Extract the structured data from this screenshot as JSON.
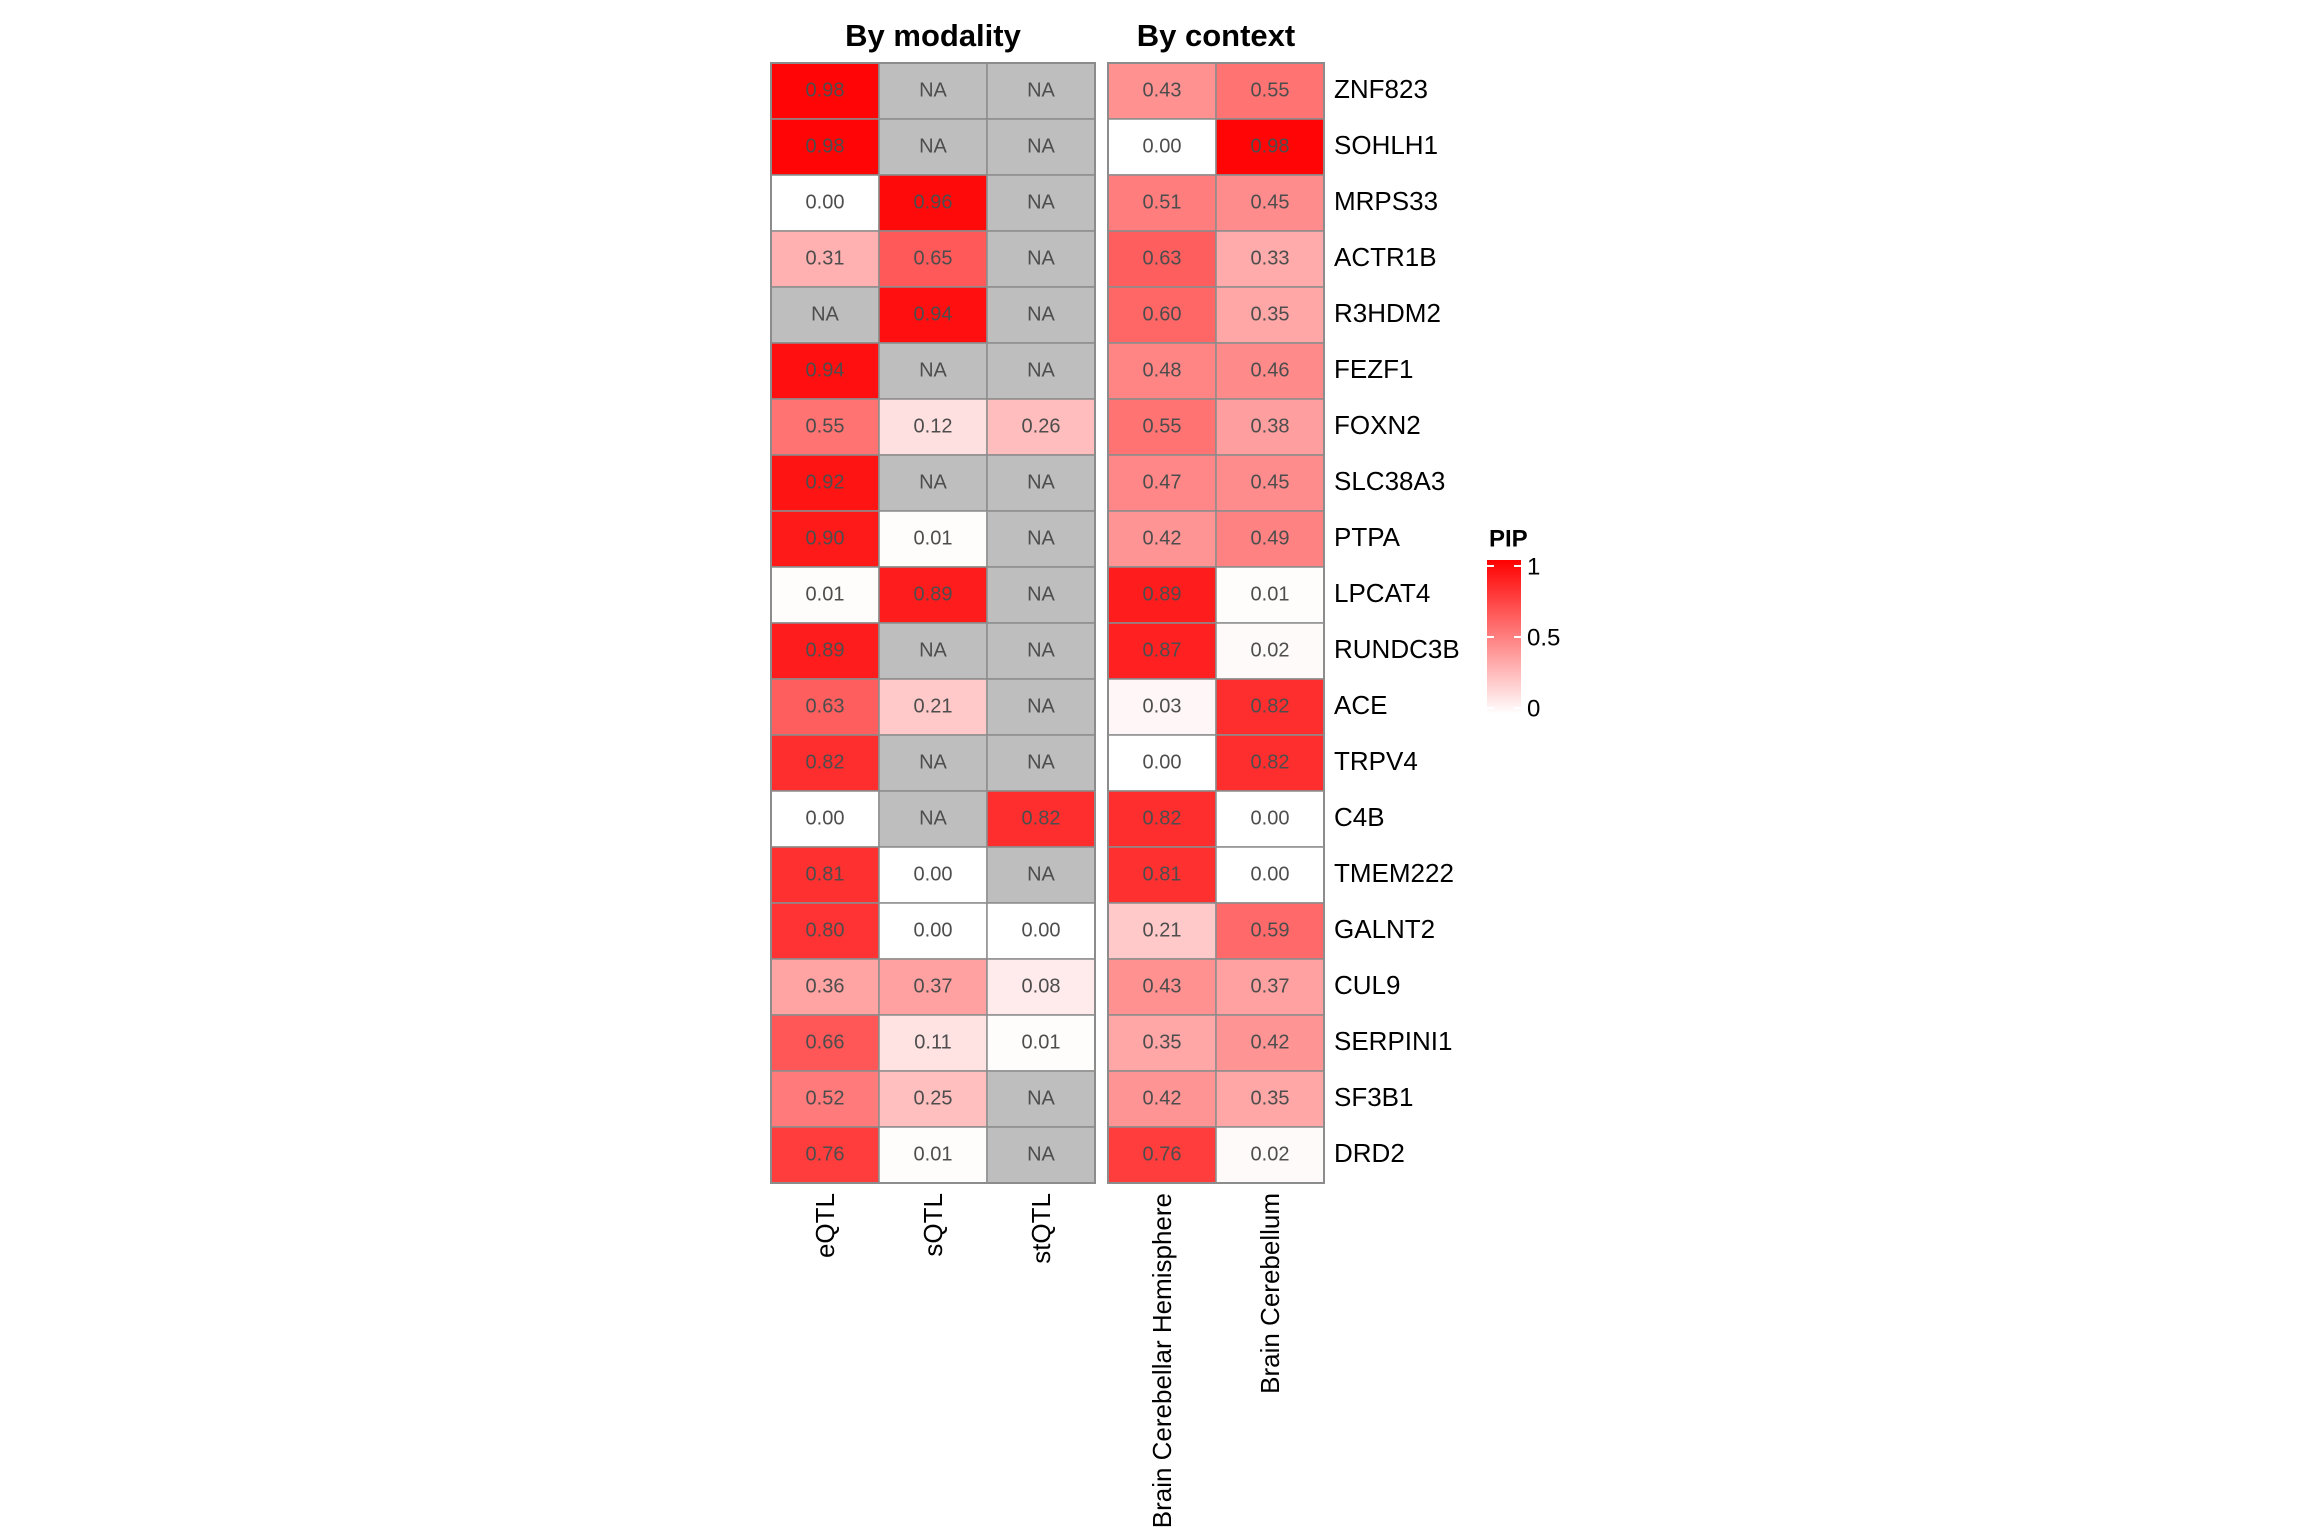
{
  "chart_data": [
    {
      "type": "heatmap",
      "title": "By modality",
      "columns": [
        "eQTL",
        "sQTL",
        "stQTL"
      ],
      "rows": [
        "ZNF823",
        "SOHLH1",
        "MRPS33",
        "ACTR1B",
        "R3HDM2",
        "FEZF1",
        "FOXN2",
        "SLC38A3",
        "PTPA",
        "LPCAT4",
        "RUNDC3B",
        "ACE",
        "TRPV4",
        "C4B",
        "TMEM222",
        "GALNT2",
        "CUL9",
        "SERPINI1",
        "SF3B1",
        "DRD2"
      ],
      "values": [
        [
          0.98,
          null,
          null
        ],
        [
          0.98,
          null,
          null
        ],
        [
          0.0,
          0.96,
          null
        ],
        [
          0.31,
          0.65,
          null
        ],
        [
          null,
          0.94,
          null
        ],
        [
          0.94,
          null,
          null
        ],
        [
          0.55,
          0.12,
          0.26
        ],
        [
          0.92,
          null,
          null
        ],
        [
          0.9,
          0.01,
          null
        ],
        [
          0.01,
          0.89,
          null
        ],
        [
          0.89,
          null,
          null
        ],
        [
          0.63,
          0.21,
          null
        ],
        [
          0.82,
          null,
          null
        ],
        [
          0.0,
          null,
          0.82
        ],
        [
          0.81,
          0.0,
          null
        ],
        [
          0.8,
          0.0,
          0.0
        ],
        [
          0.36,
          0.37,
          0.08
        ],
        [
          0.66,
          0.11,
          0.01
        ],
        [
          0.52,
          0.25,
          null
        ],
        [
          0.76,
          0.01,
          null
        ]
      ],
      "labels": [
        [
          "0.98",
          "NA",
          "NA"
        ],
        [
          "0.98",
          "NA",
          "NA"
        ],
        [
          "0.00",
          "0.96",
          "NA"
        ],
        [
          "0.31",
          "0.65",
          "NA"
        ],
        [
          "NA",
          "0.94",
          "NA"
        ],
        [
          "0.94",
          "NA",
          "NA"
        ],
        [
          "0.55",
          "0.12",
          "0.26"
        ],
        [
          "0.92",
          "NA",
          "NA"
        ],
        [
          "0.90",
          "0.01",
          "NA"
        ],
        [
          "0.01",
          "0.89",
          "NA"
        ],
        [
          "0.89",
          "NA",
          "NA"
        ],
        [
          "0.63",
          "0.21",
          "NA"
        ],
        [
          "0.82",
          "NA",
          "NA"
        ],
        [
          "0.00",
          "NA",
          "0.82"
        ],
        [
          "0.81",
          "0.00",
          "NA"
        ],
        [
          "0.80",
          "0.00",
          "0.00"
        ],
        [
          "0.36",
          "0.37",
          "0.08"
        ],
        [
          "0.66",
          "0.11",
          "0.01"
        ],
        [
          "0.52",
          "0.25",
          "NA"
        ],
        [
          "0.76",
          "0.01",
          "NA"
        ]
      ]
    },
    {
      "type": "heatmap",
      "title": "By context",
      "columns": [
        "Brain Cerebellar Hemisphere",
        "Brain Cerebellum"
      ],
      "rows": [
        "ZNF823",
        "SOHLH1",
        "MRPS33",
        "ACTR1B",
        "R3HDM2",
        "FEZF1",
        "FOXN2",
        "SLC38A3",
        "PTPA",
        "LPCAT4",
        "RUNDC3B",
        "ACE",
        "TRPV4",
        "C4B",
        "TMEM222",
        "GALNT2",
        "CUL9",
        "SERPINI1",
        "SF3B1",
        "DRD2"
      ],
      "values": [
        [
          0.43,
          0.55
        ],
        [
          0.0,
          0.98
        ],
        [
          0.51,
          0.45
        ],
        [
          0.63,
          0.33
        ],
        [
          0.6,
          0.35
        ],
        [
          0.48,
          0.46
        ],
        [
          0.55,
          0.38
        ],
        [
          0.47,
          0.45
        ],
        [
          0.42,
          0.49
        ],
        [
          0.89,
          0.01
        ],
        [
          0.87,
          0.02
        ],
        [
          0.03,
          0.82
        ],
        [
          0.0,
          0.82
        ],
        [
          0.82,
          0.0
        ],
        [
          0.81,
          0.0
        ],
        [
          0.21,
          0.59
        ],
        [
          0.43,
          0.37
        ],
        [
          0.35,
          0.42
        ],
        [
          0.42,
          0.35
        ],
        [
          0.76,
          0.02
        ]
      ],
      "labels": [
        [
          "0.43",
          "0.55"
        ],
        [
          "0.00",
          "0.98"
        ],
        [
          "0.51",
          "0.45"
        ],
        [
          "0.63",
          "0.33"
        ],
        [
          "0.60",
          "0.35"
        ],
        [
          "0.48",
          "0.46"
        ],
        [
          "0.55",
          "0.38"
        ],
        [
          "0.47",
          "0.45"
        ],
        [
          "0.42",
          "0.49"
        ],
        [
          "0.89",
          "0.01"
        ],
        [
          "0.87",
          "0.02"
        ],
        [
          "0.03",
          "0.82"
        ],
        [
          "0.00",
          "0.82"
        ],
        [
          "0.82",
          "0.00"
        ],
        [
          "0.81",
          "0.00"
        ],
        [
          "0.21",
          "0.59"
        ],
        [
          "0.43",
          "0.37"
        ],
        [
          "0.35",
          "0.42"
        ],
        [
          "0.42",
          "0.35"
        ],
        [
          "0.76",
          "0.02"
        ]
      ]
    }
  ],
  "legend": {
    "title": "PIP",
    "ticks": [
      1,
      0.5,
      0
    ],
    "tick_labels": [
      "1",
      "0.5",
      "0"
    ],
    "range": [
      0,
      1
    ]
  },
  "colors": {
    "low": "#ffffff",
    "high": "#ff0000",
    "na": "#bebebe",
    "cell_border": "#8c8c8c"
  }
}
